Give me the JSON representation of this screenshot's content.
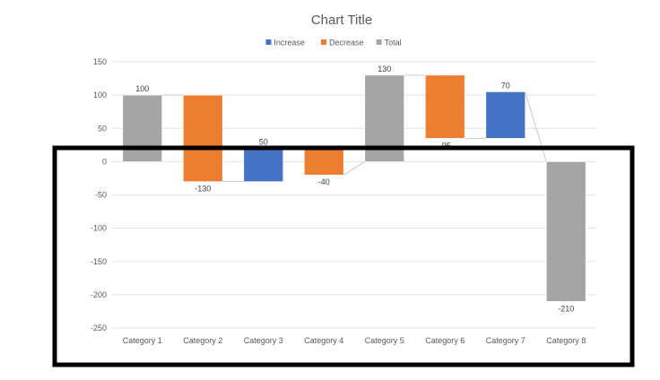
{
  "chart_data": {
    "type": "bar",
    "subtype": "waterfall",
    "title": "Chart Title",
    "xlabel": "",
    "ylabel": "",
    "categories": [
      "Category 1",
      "Category 2",
      "Category 3",
      "Category 4",
      "Category 5",
      "Category 6",
      "Category 7",
      "Category 8"
    ],
    "bars": [
      {
        "category": "Category 1",
        "kind": "Total",
        "from": 0,
        "to": 100,
        "label": "100"
      },
      {
        "category": "Category 2",
        "kind": "Decrease",
        "from": 100,
        "to": -30,
        "label": "-130"
      },
      {
        "category": "Category 3",
        "kind": "Increase",
        "from": -30,
        "to": 20,
        "label": "50"
      },
      {
        "category": "Category 4",
        "kind": "Decrease",
        "from": 20,
        "to": -20,
        "label": "-40"
      },
      {
        "category": "Category 5",
        "kind": "Total",
        "from": 0,
        "to": 130,
        "label": "130"
      },
      {
        "category": "Category 6",
        "kind": "Decrease",
        "from": 130,
        "to": 35,
        "label": "-95"
      },
      {
        "category": "Category 7",
        "kind": "Increase",
        "from": 35,
        "to": 105,
        "label": "70"
      },
      {
        "category": "Category 8",
        "kind": "Total",
        "from": 0,
        "to": -210,
        "label": "-210"
      }
    ],
    "legend": [
      {
        "name": "Increase",
        "color": "#4472c4"
      },
      {
        "name": "Decrease",
        "color": "#ed7d31"
      },
      {
        "name": "Total",
        "color": "#a5a5a5"
      }
    ],
    "ylim": [
      -250,
      150
    ],
    "yticks": [
      150,
      100,
      50,
      0,
      -50,
      -100,
      -150,
      -200,
      -250
    ],
    "grid": true,
    "legend_position": "top",
    "connector_color": "#bfbfbf",
    "highlight_box": true
  }
}
